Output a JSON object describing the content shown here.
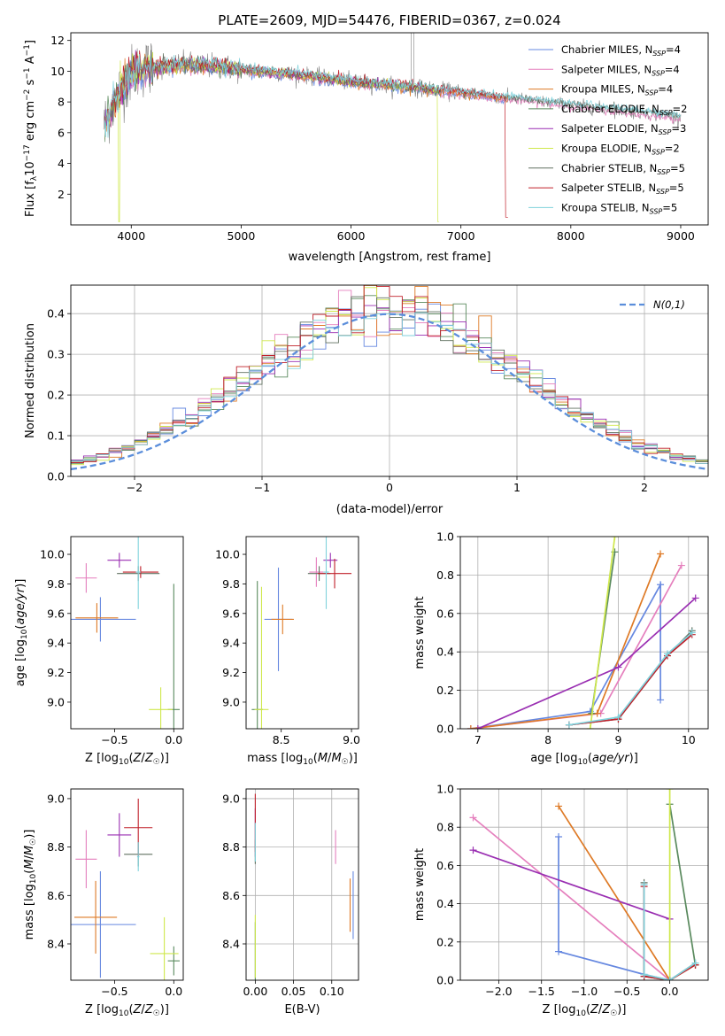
{
  "colors": {
    "chabrier_miles": "#6688e0",
    "salpeter_miles": "#e57fbd",
    "kroupa_miles": "#de7a26",
    "chabrier_elodie": "#5a8a5e",
    "salpeter_elodie": "#9a2fb2",
    "kroupa_elodie": "#cfe84c",
    "chabrier_stelib": "#607060",
    "salpeter_stelib": "#c0202a",
    "kroupa_stelib": "#80d2dc",
    "data": "#808080",
    "gaussian": "#5b8edb"
  },
  "chart_data": [
    {
      "type": "line",
      "title": "PLATE=2609, MJD=54476, FIBERID=0367, z=0.024",
      "xlabel": "wavelength [Angstrom, rest frame]",
      "ylabel": "Flux [f_λ 10^-17 erg cm^-2 s^-1 A^-1]",
      "xlim": [
        3450,
        9250
      ],
      "ylim": [
        0,
        12.5
      ],
      "xticks": [
        "4000",
        "5000",
        "6000",
        "7000",
        "8000",
        "9000"
      ],
      "yticks": [
        "2",
        "4",
        "6",
        "8",
        "10",
        "12"
      ],
      "legend_position": "top-right",
      "continuum": {
        "wavelength": [
          3750,
          3900,
          4000,
          4100,
          4300,
          4500,
          4800,
          5000,
          5500,
          6000,
          6500,
          7000,
          7500,
          8000,
          8500,
          9000
        ],
        "flux": [
          6.5,
          8.8,
          9.8,
          10.2,
          10.3,
          10.4,
          10.3,
          10.1,
          9.8,
          9.3,
          9.0,
          8.6,
          8.2,
          7.8,
          7.4,
          7.0
        ]
      },
      "series": [
        {
          "label": "Chabrier MILES, N_SSP=4",
          "color_key": "chabrier_miles"
        },
        {
          "label": "Salpeter MILES, N_SSP=4",
          "color_key": "salpeter_miles"
        },
        {
          "label": "Kroupa MILES, N_SSP=4",
          "color_key": "kroupa_miles"
        },
        {
          "label": "Chabrier ELODIE, N_SSP=2",
          "color_key": "chabrier_elodie"
        },
        {
          "label": "Salpeter ELODIE, N_SSP=3",
          "color_key": "salpeter_elodie"
        },
        {
          "label": "Kroupa ELODIE, N_SSP=2",
          "color_key": "kroupa_elodie"
        },
        {
          "label": "Chabrier STELIB, N_SSP=5",
          "color_key": "chabrier_stelib"
        },
        {
          "label": "Salpeter STELIB, N_SSP=5",
          "color_key": "salpeter_stelib"
        },
        {
          "label": "Kroupa STELIB, N_SSP=5",
          "color_key": "kroupa_stelib"
        }
      ]
    },
    {
      "type": "line",
      "xlabel": "(data-model)/error",
      "ylabel": "Normed distribution",
      "xlim": [
        -2.5,
        2.5
      ],
      "ylim": [
        0,
        0.47
      ],
      "xticks": [
        "−2",
        "−1",
        "0",
        "1",
        "2"
      ],
      "yticks": [
        "0.0",
        "0.1",
        "0.2",
        "0.3",
        "0.4"
      ],
      "grid": true,
      "legend_position": "top-right",
      "gaussian_label": "N(0,1)",
      "histogram_bin_width": 0.1,
      "histogram_range": [
        -2.5,
        2.5
      ]
    },
    {
      "type": "scatter",
      "xlabel": "Z [log10(Z/Z☉)]",
      "ylabel": "age [log10(age/yr)]",
      "xlim": [
        -0.87,
        0.08
      ],
      "ylim": [
        8.82,
        10.12
      ],
      "xticks": [
        "−0.5",
        "0.0"
      ],
      "yticks": [
        "9.0",
        "9.2",
        "9.4",
        "9.6",
        "9.8",
        "10.0"
      ],
      "points": [
        {
          "color_key": "chabrier_miles",
          "x": -0.62,
          "y": 9.56,
          "xerr": 0.3,
          "yerr": 0.15
        },
        {
          "color_key": "salpeter_miles",
          "x": -0.74,
          "y": 9.84,
          "xerr": 0.09,
          "yerr": 0.1
        },
        {
          "color_key": "kroupa_miles",
          "x": -0.65,
          "y": 9.57,
          "xerr": 0.18,
          "yerr": 0.1
        },
        {
          "color_key": "chabrier_elodie",
          "x": 0.0,
          "y": 8.95,
          "xerr": 0.05,
          "yerr": 0.85
        },
        {
          "color_key": "salpeter_elodie",
          "x": -0.46,
          "y": 9.96,
          "xerr": 0.1,
          "yerr": 0.05
        },
        {
          "color_key": "kroupa_elodie",
          "x": -0.11,
          "y": 8.95,
          "xerr": 0.1,
          "yerr": 0.15
        },
        {
          "color_key": "chabrier_stelib",
          "x": -0.3,
          "y": 9.87,
          "xerr": 0.18,
          "yerr": 0.05
        },
        {
          "color_key": "salpeter_stelib",
          "x": -0.28,
          "y": 9.88,
          "xerr": 0.15,
          "yerr": 0.04
        },
        {
          "color_key": "kroupa_stelib",
          "x": -0.3,
          "y": 9.88,
          "xerr": 0.02,
          "yerr": 0.25
        }
      ]
    },
    {
      "type": "scatter",
      "xlabel": "mass [log10(M/M☉)]",
      "ylabel": "",
      "xlim": [
        8.25,
        9.05
      ],
      "ylim": [
        8.82,
        10.12
      ],
      "xticks": [
        "8.5",
        "9.0"
      ],
      "yticks": [
        "9.0",
        "9.2",
        "9.4",
        "9.6",
        "9.8",
        "10.0"
      ],
      "points": [
        {
          "color_key": "chabrier_miles",
          "x": 8.48,
          "y": 9.56,
          "xerr": 0.1,
          "yerr": 0.35
        },
        {
          "color_key": "salpeter_miles",
          "x": 8.75,
          "y": 9.88,
          "xerr": 0.05,
          "yerr": 0.1
        },
        {
          "color_key": "kroupa_miles",
          "x": 8.51,
          "y": 9.56,
          "xerr": 0.08,
          "yerr": 0.1
        },
        {
          "color_key": "chabrier_elodie",
          "x": 8.33,
          "y": 8.95,
          "xerr": 0.04,
          "yerr": 0.87
        },
        {
          "color_key": "salpeter_elodie",
          "x": 8.85,
          "y": 9.96,
          "xerr": 0.05,
          "yerr": 0.05
        },
        {
          "color_key": "kroupa_elodie",
          "x": 8.36,
          "y": 8.95,
          "xerr": 0.05,
          "yerr": 0.83
        },
        {
          "color_key": "chabrier_stelib",
          "x": 8.77,
          "y": 9.87,
          "xerr": 0.08,
          "yerr": 0.05
        },
        {
          "color_key": "salpeter_stelib",
          "x": 8.88,
          "y": 9.87,
          "xerr": 0.12,
          "yerr": 0.1
        },
        {
          "color_key": "kroupa_stelib",
          "x": 8.82,
          "y": 9.88,
          "xerr": 0.02,
          "yerr": 0.25
        }
      ]
    },
    {
      "type": "line",
      "xlabel": "age [log10(age/yr)]",
      "ylabel": "mass weight",
      "xlim": [
        6.75,
        10.28
      ],
      "ylim": [
        0,
        1.0
      ],
      "xticks": [
        "7",
        "8",
        "9",
        "10"
      ],
      "yticks": [
        "0.0",
        "0.2",
        "0.4",
        "0.6",
        "0.8",
        "1.0"
      ],
      "grid": true,
      "series": [
        {
          "color_key": "chabrier_miles",
          "x": [
            6.9,
            8.6,
            9.6,
            9.6
          ],
          "y": [
            0.0,
            0.09,
            0.75,
            0.15
          ]
        },
        {
          "color_key": "salpeter_miles",
          "x": [
            6.9,
            8.75,
            9.9
          ],
          "y": [
            0.0,
            0.08,
            0.85
          ]
        },
        {
          "color_key": "kroupa_miles",
          "x": [
            6.9,
            8.7,
            9.6
          ],
          "y": [
            0.0,
            0.08,
            0.91
          ]
        },
        {
          "color_key": "chabrier_elodie",
          "x": [
            8.62,
            8.95
          ],
          "y": [
            0.08,
            0.92
          ]
        },
        {
          "color_key": "salpeter_elodie",
          "x": [
            7.0,
            9.0,
            10.1
          ],
          "y": [
            0.0,
            0.32,
            0.68
          ]
        },
        {
          "color_key": "kroupa_elodie",
          "x": [
            8.6,
            8.95
          ],
          "y": [
            0.0,
            1.0
          ]
        },
        {
          "color_key": "chabrier_stelib",
          "x": [
            8.3,
            9.0,
            9.7,
            10.05
          ],
          "y": [
            0.02,
            0.05,
            0.38,
            0.51
          ]
        },
        {
          "color_key": "salpeter_stelib",
          "x": [
            8.3,
            9.0,
            9.7,
            10.05
          ],
          "y": [
            0.02,
            0.05,
            0.38,
            0.49
          ]
        },
        {
          "color_key": "kroupa_stelib",
          "x": [
            8.3,
            9.0,
            9.7,
            10.05
          ],
          "y": [
            0.02,
            0.06,
            0.39,
            0.5
          ]
        }
      ]
    },
    {
      "type": "scatter",
      "xlabel": "Z [log10(Z/Z☉)]",
      "ylabel": "mass [log10(M/M☉)]",
      "xlim": [
        -0.87,
        0.08
      ],
      "ylim": [
        8.25,
        9.04
      ],
      "xticks": [
        "−0.5",
        "0.0"
      ],
      "yticks": [
        "8.4",
        "8.6",
        "8.8",
        "9.0"
      ],
      "points": [
        {
          "color_key": "chabrier_miles",
          "x": -0.62,
          "y": 8.48,
          "xerr": 0.3,
          "yerr": 0.22
        },
        {
          "color_key": "salpeter_miles",
          "x": -0.74,
          "y": 8.75,
          "xerr": 0.09,
          "yerr": 0.12
        },
        {
          "color_key": "kroupa_miles",
          "x": -0.66,
          "y": 8.51,
          "xerr": 0.18,
          "yerr": 0.15
        },
        {
          "color_key": "chabrier_elodie",
          "x": 0.0,
          "y": 8.33,
          "xerr": 0.05,
          "yerr": 0.06
        },
        {
          "color_key": "salpeter_elodie",
          "x": -0.46,
          "y": 8.85,
          "xerr": 0.1,
          "yerr": 0.09
        },
        {
          "color_key": "kroupa_elodie",
          "x": -0.08,
          "y": 8.36,
          "xerr": 0.12,
          "yerr": 0.15
        },
        {
          "color_key": "chabrier_stelib",
          "x": -0.3,
          "y": 8.77,
          "xerr": 0.12,
          "yerr": 0.05
        },
        {
          "color_key": "salpeter_stelib",
          "x": -0.3,
          "y": 8.88,
          "xerr": 0.12,
          "yerr": 0.12
        },
        {
          "color_key": "kroupa_stelib",
          "x": -0.3,
          "y": 8.76,
          "xerr": 0.01,
          "yerr": 0.06
        }
      ]
    },
    {
      "type": "scatter",
      "xlabel": "E(B-V)",
      "ylabel": "",
      "xlim": [
        -0.012,
        0.135
      ],
      "ylim": [
        8.25,
        9.04
      ],
      "xticks": [
        "0.00",
        "0.05",
        "0.10"
      ],
      "yticks": [
        "8.4",
        "8.6",
        "8.8",
        "9.0"
      ],
      "grid": true,
      "points": [
        {
          "color_key": "chabrier_miles",
          "x": 0.128,
          "y": 8.56,
          "yerr": 0.14
        },
        {
          "color_key": "salpeter_miles",
          "x": 0.105,
          "y": 8.8,
          "yerr": 0.07
        },
        {
          "color_key": "kroupa_miles",
          "x": 0.124,
          "y": 8.56,
          "yerr": 0.11
        },
        {
          "color_key": "chabrier_elodie",
          "x": 0.0,
          "y": 8.37,
          "yerr": 0.12
        },
        {
          "color_key": "salpeter_elodie",
          "x": 0.0,
          "y": 8.86,
          "yerr": 0.1
        },
        {
          "color_key": "kroupa_elodie",
          "x": 0.0,
          "y": 8.39,
          "yerr": 0.13
        },
        {
          "color_key": "chabrier_stelib",
          "x": 0.0,
          "y": 8.78,
          "yerr": 0.05
        },
        {
          "color_key": "salpeter_stelib",
          "x": 0.0,
          "y": 8.9,
          "yerr": 0.12
        },
        {
          "color_key": "kroupa_stelib",
          "x": 0.0,
          "y": 8.82,
          "yerr": 0.08
        }
      ]
    },
    {
      "type": "line",
      "xlabel": "Z [log10(Z/Z☉)]",
      "ylabel": "mass weight",
      "xlim": [
        -2.45,
        0.45
      ],
      "ylim": [
        0,
        1.0
      ],
      "xticks": [
        "−2.0",
        "−1.5",
        "−1.0",
        "−0.5",
        "0.0"
      ],
      "yticks": [
        "0.0",
        "0.2",
        "0.4",
        "0.6",
        "0.8",
        "1.0"
      ],
      "grid": true,
      "series": [
        {
          "color_key": "chabrier_miles",
          "x": [
            -1.3,
            -1.3,
            -0.3,
            0.0
          ],
          "y": [
            0.75,
            0.15,
            0.03,
            0.0
          ]
        },
        {
          "color_key": "salpeter_miles",
          "x": [
            -2.3,
            0.0
          ],
          "y": [
            0.85,
            0.0
          ]
        },
        {
          "color_key": "kroupa_miles",
          "x": [
            -1.3,
            0.0,
            0.3
          ],
          "y": [
            0.91,
            0.0,
            0.08
          ]
        },
        {
          "color_key": "chabrier_elodie",
          "x": [
            0.0,
            0.3
          ],
          "y": [
            0.92,
            0.08
          ]
        },
        {
          "color_key": "salpeter_elodie",
          "x": [
            -2.3,
            0.0
          ],
          "y": [
            0.68,
            0.32
          ]
        },
        {
          "color_key": "kroupa_elodie",
          "x": [
            0.0,
            0.0
          ],
          "y": [
            0.0,
            1.0
          ]
        },
        {
          "color_key": "chabrier_stelib",
          "x": [
            -0.3,
            -0.3,
            0.0,
            0.3
          ],
          "y": [
            0.51,
            0.02,
            0.0,
            0.09
          ]
        },
        {
          "color_key": "salpeter_stelib",
          "x": [
            -0.3,
            -0.3,
            0.0,
            0.3
          ],
          "y": [
            0.49,
            0.02,
            0.0,
            0.08
          ]
        },
        {
          "color_key": "kroupa_stelib",
          "x": [
            -0.3,
            -0.3,
            0.0,
            0.3
          ],
          "y": [
            0.5,
            0.03,
            0.0,
            0.09
          ]
        }
      ]
    }
  ]
}
